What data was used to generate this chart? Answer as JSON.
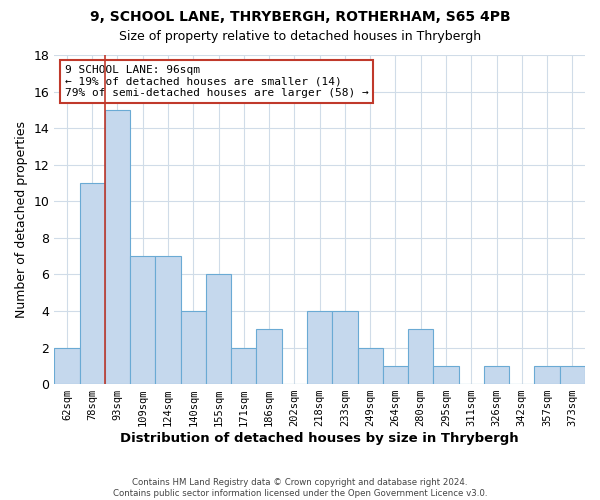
{
  "title": "9, SCHOOL LANE, THRYBERGH, ROTHERHAM, S65 4PB",
  "subtitle": "Size of property relative to detached houses in Thrybergh",
  "xlabel": "Distribution of detached houses by size in Thrybergh",
  "ylabel": "Number of detached properties",
  "bin_labels": [
    "62sqm",
    "78sqm",
    "93sqm",
    "109sqm",
    "124sqm",
    "140sqm",
    "155sqm",
    "171sqm",
    "186sqm",
    "202sqm",
    "218sqm",
    "233sqm",
    "249sqm",
    "264sqm",
    "280sqm",
    "295sqm",
    "311sqm",
    "326sqm",
    "342sqm",
    "357sqm",
    "373sqm"
  ],
  "bar_values": [
    2,
    11,
    15,
    7,
    7,
    4,
    6,
    2,
    3,
    0,
    4,
    4,
    2,
    1,
    3,
    1,
    0,
    1,
    0,
    1,
    1
  ],
  "bar_color": "#c5d8ed",
  "bar_edge_color": "#6aaad4",
  "ylim": [
    0,
    18
  ],
  "yticks": [
    0,
    2,
    4,
    6,
    8,
    10,
    12,
    14,
    16,
    18
  ],
  "vline_x_idx": 2,
  "vline_color": "#c0392b",
  "annotation_text": "9 SCHOOL LANE: 96sqm\n← 19% of detached houses are smaller (14)\n79% of semi-detached houses are larger (58) →",
  "annotation_box_color": "#ffffff",
  "annotation_box_edge": "#c0392b",
  "footer_line1": "Contains HM Land Registry data © Crown copyright and database right 2024.",
  "footer_line2": "Contains public sector information licensed under the Open Government Licence v3.0.",
  "background_color": "#ffffff",
  "grid_color": "#d0dce8"
}
